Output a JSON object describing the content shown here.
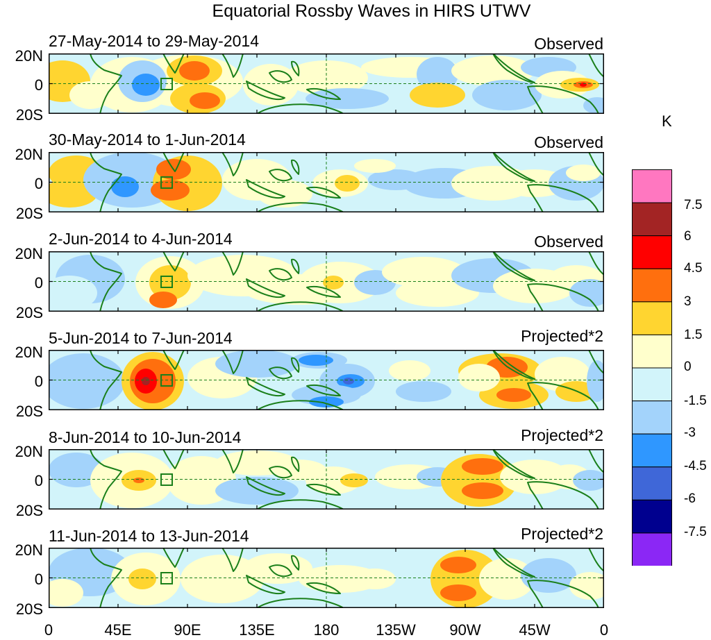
{
  "title": "Equatorial Rossby Waves in HIRS UTWV",
  "panels": [
    {
      "date_range": "27-May-2014 to 29-May-2014",
      "type": "Observed"
    },
    {
      "date_range": "30-May-2014 to 1-Jun-2014",
      "type": "Observed"
    },
    {
      "date_range": "2-Jun-2014 to 4-Jun-2014",
      "type": "Observed"
    },
    {
      "date_range": "5-Jun-2014 to 7-Jun-2014",
      "type": "Projected*2"
    },
    {
      "date_range": "8-Jun-2014 to 10-Jun-2014",
      "type": "Projected*2"
    },
    {
      "date_range": "11-Jun-2014 to 13-Jun-2014",
      "type": "Projected*2"
    }
  ],
  "lat_labels": [
    "20N",
    "0",
    "20S"
  ],
  "lon_labels": [
    "0",
    "45E",
    "90E",
    "135E",
    "180",
    "135W",
    "90W",
    "45W",
    "0"
  ],
  "colorbar": {
    "unit": "K",
    "labels": [
      "7.5",
      "6",
      "4.5",
      "3",
      "1.5",
      "0",
      "-1.5",
      "-3",
      "-4.5",
      "-6",
      "-7.5"
    ],
    "colors": [
      "#ff77c0",
      "#a32424",
      "#ff0000",
      "#ff6f0e",
      "#ffd530",
      "#ffffcc",
      "#d2f4fa",
      "#a3d3fb",
      "#2f97ff",
      "#3f67d8",
      "#00008f",
      "#8b27f5"
    ]
  },
  "map_colors": {
    "land_outline": "#1a7f1a",
    "box": "#1a7f1a",
    "equator_line": "#1a7f1a"
  }
}
